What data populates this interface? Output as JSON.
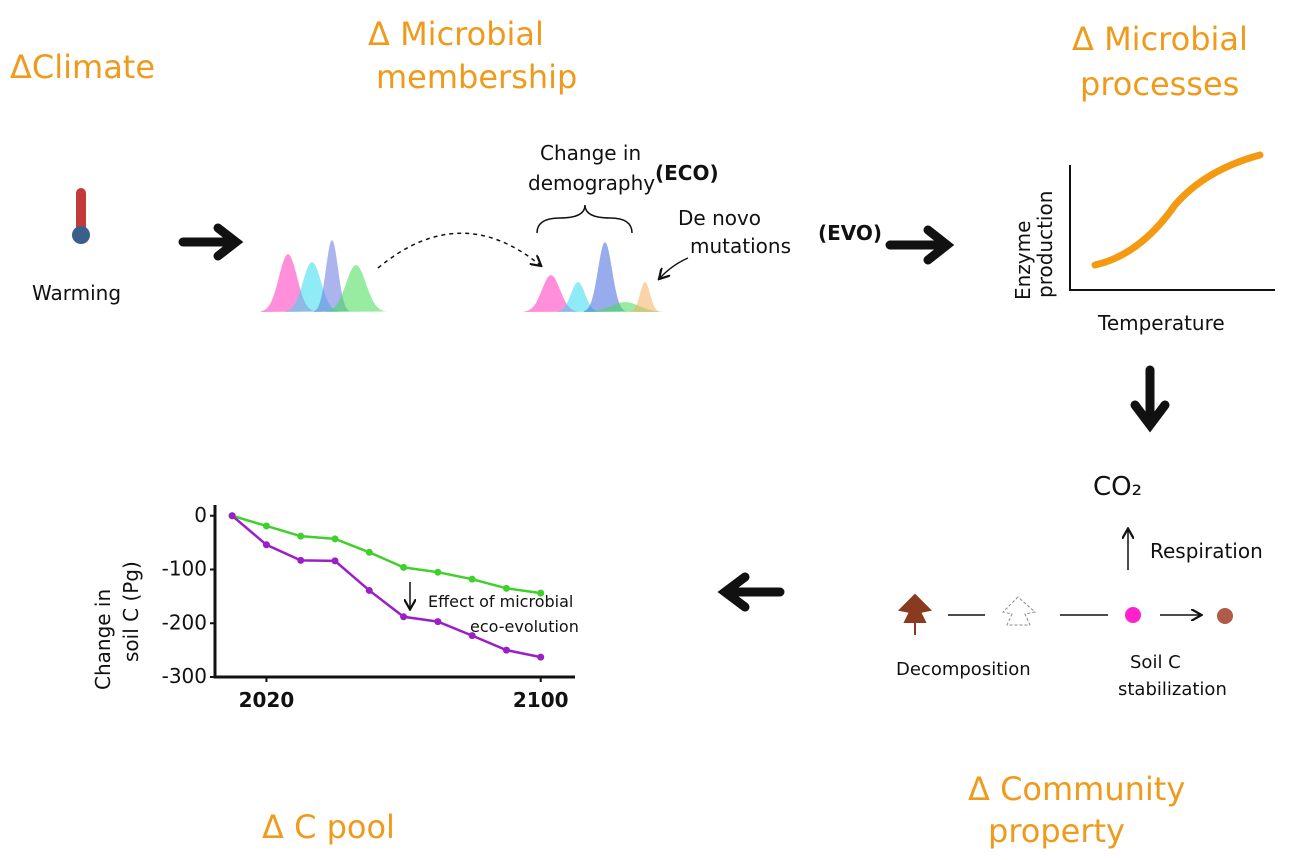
{
  "headings": {
    "climate": [
      "ΔClimate"
    ],
    "membership": [
      "Δ Microbial",
      "membership"
    ],
    "processes": [
      "Δ Microbial",
      "processes"
    ],
    "community": [
      "Δ Community",
      "property"
    ],
    "c_pool": [
      "Δ C pool"
    ]
  },
  "labels": {
    "warming": "Warming",
    "demography": [
      "Change in",
      "demography"
    ],
    "eco": "(ECO)",
    "mutations": [
      "De novo",
      "mutations"
    ],
    "evo": "(EVO)",
    "enzyme_axis": [
      "Enzyme",
      "production"
    ],
    "temperature": "Temperature",
    "co2": "CO₂",
    "respiration": "Respiration",
    "decomposition": "Decomposition",
    "stabilization": [
      "Soil C",
      "stabilization"
    ]
  },
  "chart_data": {
    "type": "line",
    "y_label": [
      "Change in",
      "soil C (Pg)"
    ],
    "annotation": [
      "Effect of microbial",
      "eco-evolution"
    ],
    "x": [
      2010,
      2020,
      2030,
      2040,
      2050,
      2060,
      2070,
      2080,
      2090,
      2100
    ],
    "series": [
      {
        "color": "#3fd12a",
        "values": [
          0,
          -19,
          -38,
          -43,
          -68,
          -96,
          -105,
          -118,
          -135,
          -144
        ]
      },
      {
        "color": "#9b1fc9",
        "values": [
          0,
          -54,
          -83,
          -84,
          -139,
          -188,
          -197,
          -223,
          -250,
          -263
        ]
      }
    ],
    "xlim": [
      2005,
      2110
    ],
    "ylim": [
      -300,
      20
    ],
    "xticks": [
      2020,
      2100
    ],
    "yticks": [
      0,
      -100,
      -200,
      -300
    ]
  }
}
